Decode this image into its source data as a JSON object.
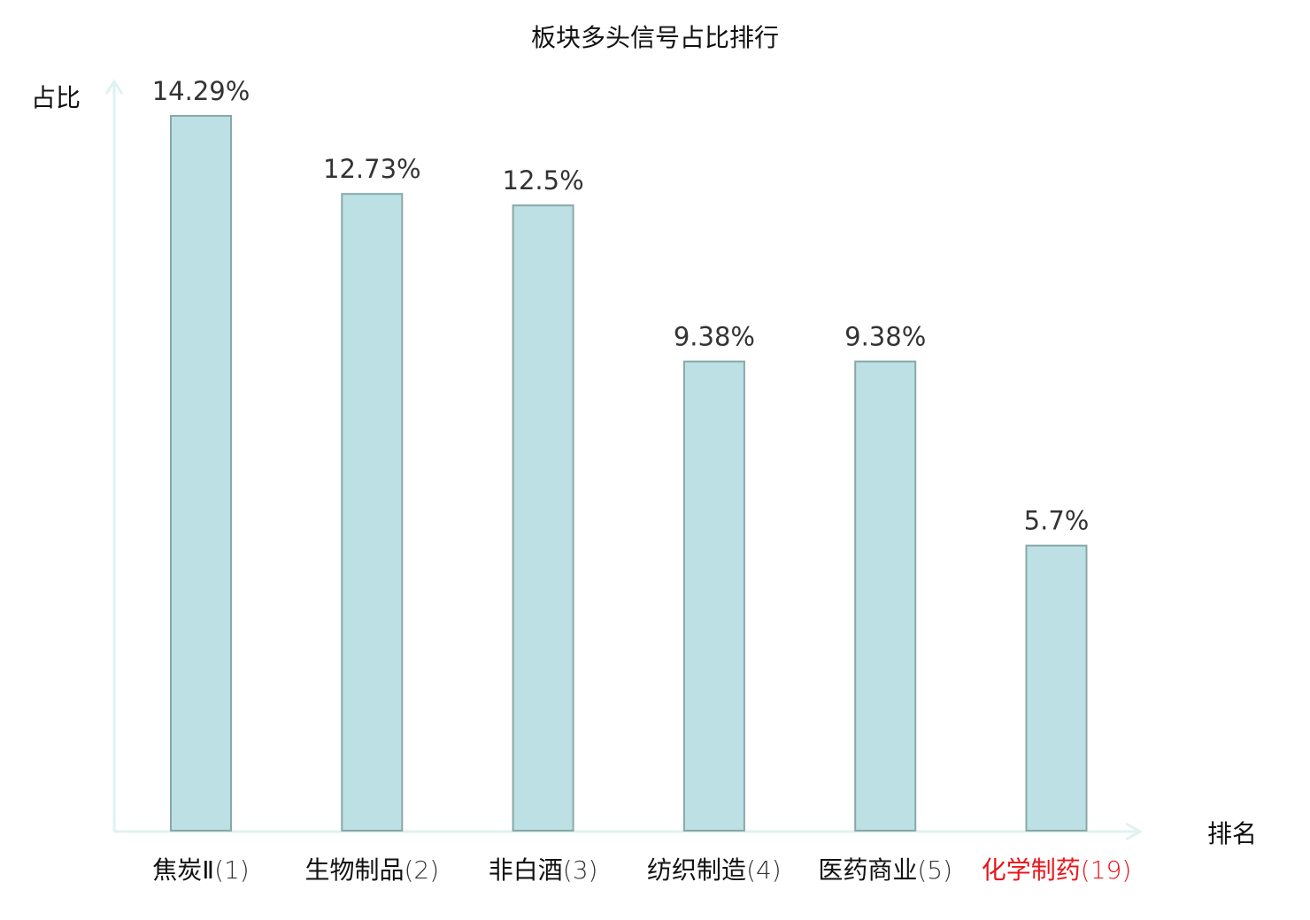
{
  "chart_data": {
    "type": "bar",
    "title": "板块多头信号占比排行",
    "xlabel": "排名",
    "ylabel": "占比",
    "categories": [
      {
        "name": "焦炭Ⅱ",
        "rank": "(1)",
        "highlight": false
      },
      {
        "name": "生物制品",
        "rank": "(2)",
        "highlight": false
      },
      {
        "name": "非白酒",
        "rank": "(3)",
        "highlight": false
      },
      {
        "name": "纺织制造",
        "rank": "(4)",
        "highlight": false
      },
      {
        "name": "医药商业",
        "rank": "(5)",
        "highlight": false
      },
      {
        "name": "化学制药",
        "rank": "(19)",
        "highlight": true
      }
    ],
    "values": [
      14.29,
      12.73,
      12.5,
      9.38,
      9.38,
      5.7
    ],
    "value_labels": [
      "14.29%",
      "12.73%",
      "12.5%",
      "9.38%",
      "9.38%",
      "5.7%"
    ],
    "ylim": [
      0,
      15
    ],
    "grid": false,
    "colors": {
      "bar_fill": "#bce0e3",
      "bar_stroke": "#88a8a8",
      "axis": "#dff2f0",
      "text": "#111111",
      "highlight": "#e8161b"
    }
  }
}
